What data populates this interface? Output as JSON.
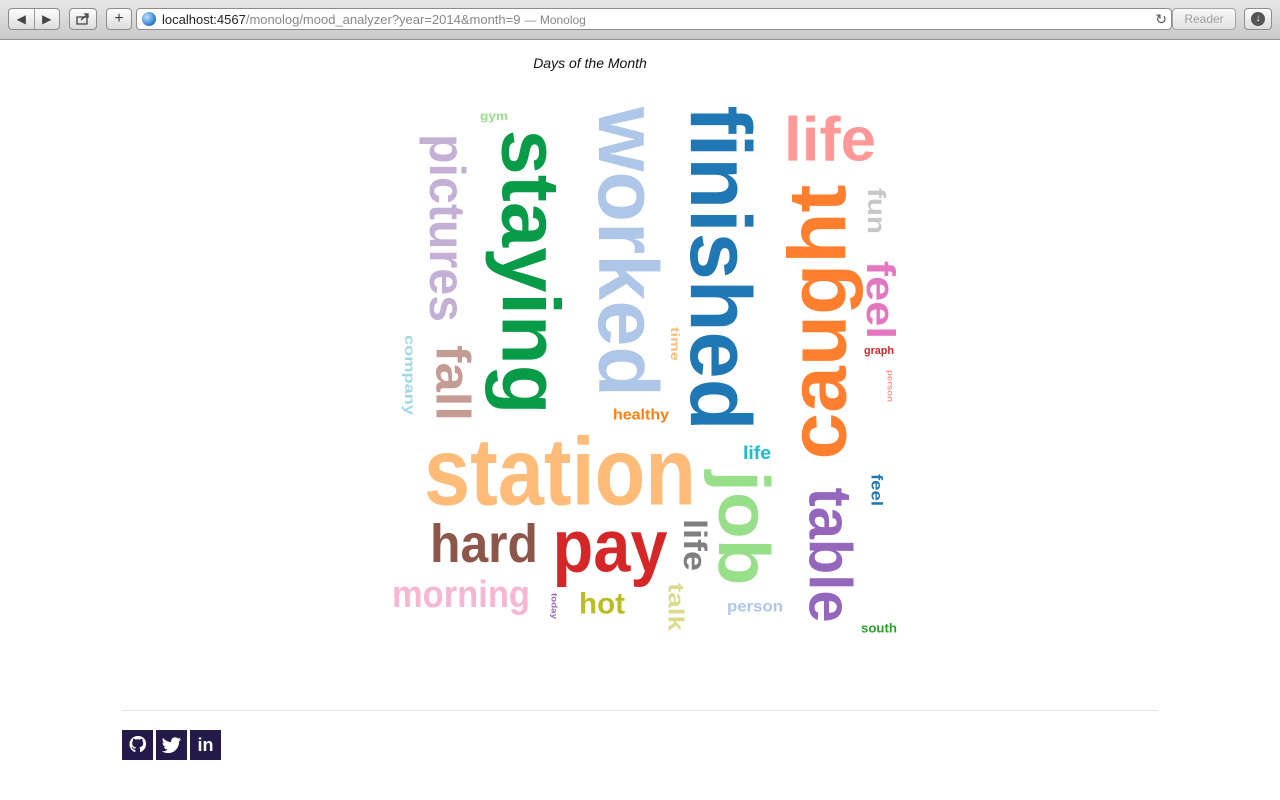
{
  "browser": {
    "url_host": "localhost:4567",
    "url_path": "/monolog/mood_analyzer?year=2014&month=9",
    "page_title": "— Monolog",
    "reader_label": "Reader",
    "icons": [
      "back-icon",
      "forward-icon",
      "share-icon",
      "plus-icon",
      "globe-icon",
      "reload-icon",
      "download-icon"
    ]
  },
  "chart": {
    "title": "Days of the Month"
  },
  "chart_data": {
    "type": "wordcloud",
    "title": "Days of the Month",
    "words": [
      {
        "text": "station",
        "color": "#ffbb78"
      },
      {
        "text": "worked",
        "color": "#aec7e8"
      },
      {
        "text": "finished",
        "color": "#1f77b4"
      },
      {
        "text": "staying",
        "color": "#089b48"
      },
      {
        "text": "caught",
        "color": "#ff7f2e"
      },
      {
        "text": "pictures",
        "color": "#c5b0d5"
      },
      {
        "text": "pay",
        "color": "#d62728"
      },
      {
        "text": "job",
        "color": "#98df8a"
      },
      {
        "text": "table",
        "color": "#9467bd"
      },
      {
        "text": "life",
        "color": "#ff9896"
      },
      {
        "text": "hard",
        "color": "#8c564b"
      },
      {
        "text": "fall",
        "color": "#c49c94"
      },
      {
        "text": "morning",
        "color": "#f7b6d2"
      },
      {
        "text": "feel",
        "color": "#e377c2"
      },
      {
        "text": "life",
        "color": "#7f7f7f"
      },
      {
        "text": "fun",
        "color": "#c7c7c7"
      },
      {
        "text": "hot",
        "color": "#bcbd22"
      },
      {
        "text": "talk",
        "color": "#dbdb8d"
      },
      {
        "text": "healthy",
        "color": "#ff7f0e"
      },
      {
        "text": "company",
        "color": "#9edae5"
      },
      {
        "text": "life",
        "color": "#17becf"
      },
      {
        "text": "person",
        "color": "#aec7e8"
      },
      {
        "text": "feel",
        "color": "#1f77b4"
      },
      {
        "text": "time",
        "color": "#ffbb78"
      },
      {
        "text": "south",
        "color": "#2ca02c"
      },
      {
        "text": "gym",
        "color": "#98df8a"
      },
      {
        "text": "graph",
        "color": "#d62728"
      },
      {
        "text": "person",
        "color": "#ff9896"
      },
      {
        "text": "today",
        "color": "#9467bd"
      }
    ]
  },
  "footer": {
    "icons": [
      "github-icon",
      "twitter-icon",
      "linkedin-icon"
    ],
    "linkedin_glyph": "in"
  }
}
